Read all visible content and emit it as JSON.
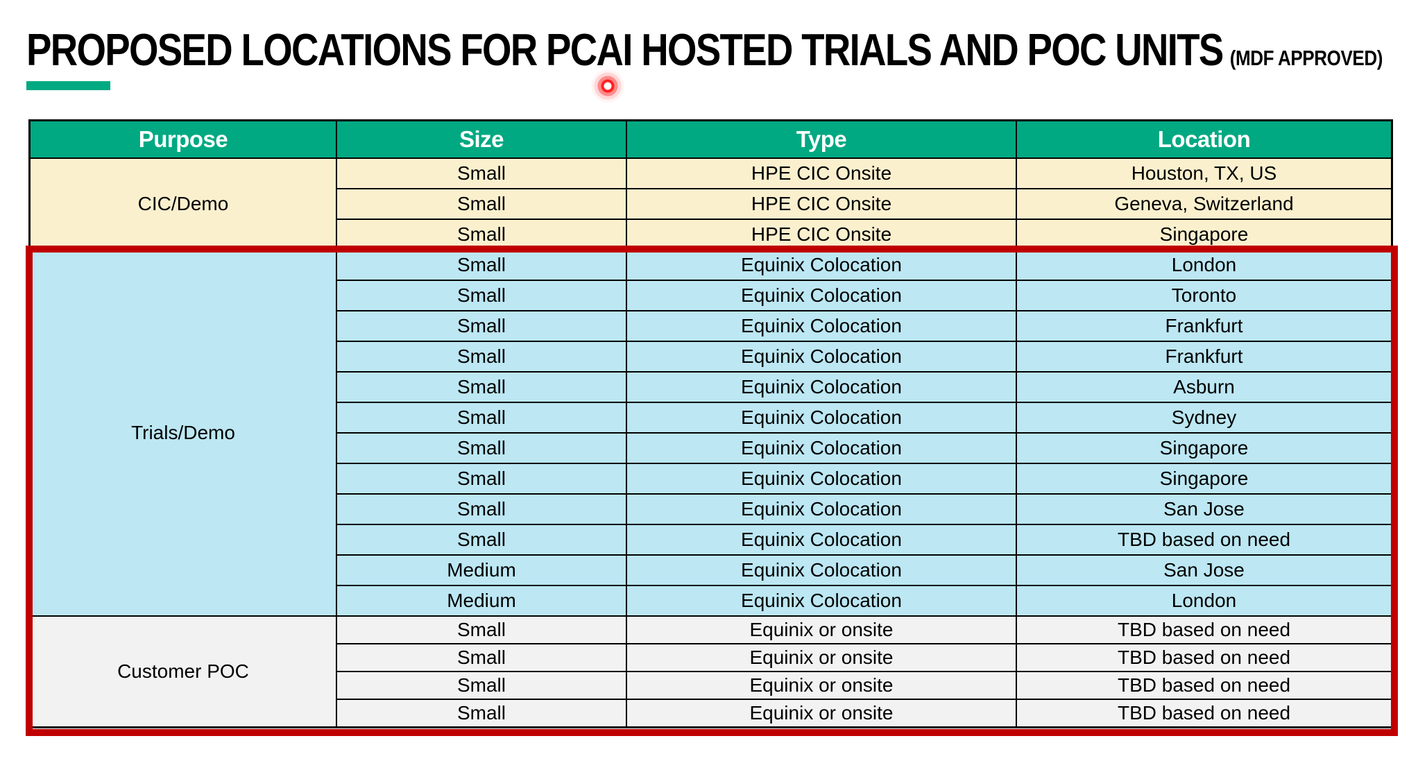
{
  "page": {
    "title": "PROPOSED LOCATIONS FOR PCAI HOSTED TRIALS AND POC UNITS",
    "title_suffix": "(MDF APPROVED)"
  },
  "colors": {
    "header_bg": "#00A982",
    "accent_bar": "#01A982",
    "highlight_border": "#C00000",
    "laser_dot": "#FF2020",
    "cic_bg": "#FBF0CE",
    "trials_bg": "#BCE7F3",
    "poc_bg": "#F2F2F2"
  },
  "table": {
    "columns": [
      "Purpose",
      "Size",
      "Type",
      "Location"
    ],
    "sections": [
      {
        "purpose": "CIC/Demo",
        "bg": "#FBF0CE",
        "rows": [
          [
            "Small",
            "HPE CIC Onsite",
            "Houston, TX, US"
          ],
          [
            "Small",
            "HPE CIC Onsite",
            "Geneva, Switzerland"
          ],
          [
            "Small",
            "HPE CIC Onsite",
            "Singapore"
          ]
        ]
      },
      {
        "purpose": "Trials/Demo",
        "bg": "#BCE7F3",
        "rows": [
          [
            "Small",
            "Equinix Colocation",
            "London"
          ],
          [
            "Small",
            "Equinix Colocation",
            "Toronto"
          ],
          [
            "Small",
            "Equinix Colocation",
            "Frankfurt"
          ],
          [
            "Small",
            "Equinix Colocation",
            "Frankfurt"
          ],
          [
            "Small",
            "Equinix Colocation",
            "Asburn"
          ],
          [
            "Small",
            "Equinix Colocation",
            "Sydney"
          ],
          [
            "Small",
            "Equinix Colocation",
            "Singapore"
          ],
          [
            "Small",
            "Equinix Colocation",
            "Singapore"
          ],
          [
            "Small",
            "Equinix Colocation",
            "San Jose"
          ],
          [
            "Small",
            "Equinix Colocation",
            "TBD based on need"
          ],
          [
            "Medium",
            "Equinix Colocation",
            "San Jose"
          ],
          [
            "Medium",
            "Equinix Colocation",
            "London"
          ]
        ]
      },
      {
        "purpose": "Customer POC",
        "bg": "#F2F2F2",
        "rows": [
          [
            "Small",
            "Equinix or onsite",
            "TBD based on need"
          ],
          [
            "Small",
            "Equinix or onsite",
            "TBD based on need"
          ],
          [
            "Small",
            "Equinix or onsite",
            "TBD based on need"
          ],
          [
            "Small",
            "Equinix or onsite",
            "TBD based on need"
          ]
        ]
      }
    ]
  }
}
